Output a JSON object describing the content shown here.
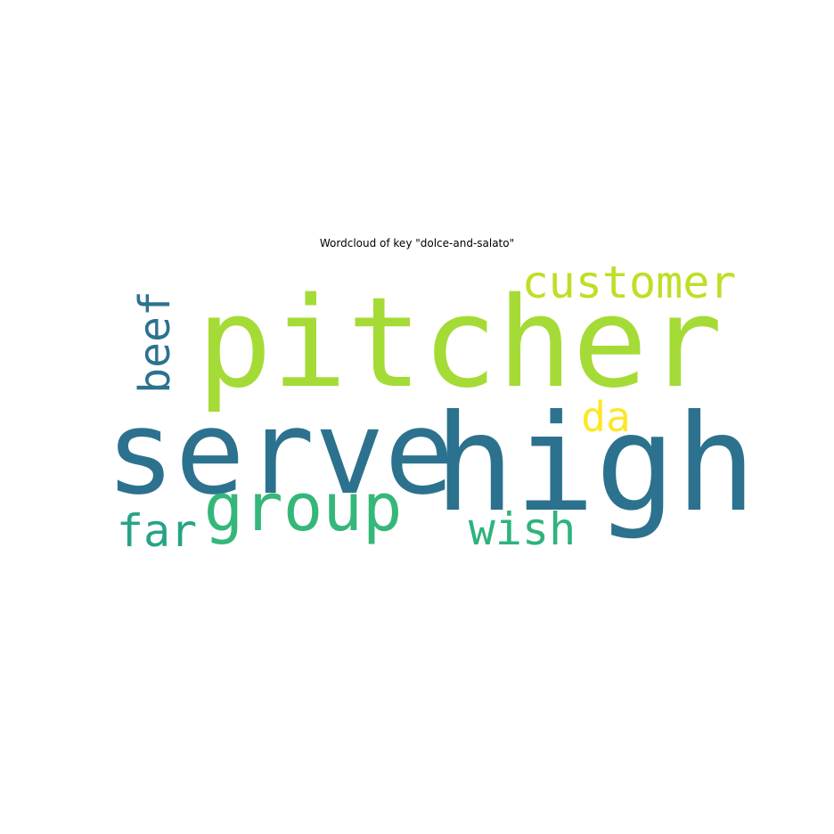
{
  "figure": {
    "title": "Wordcloud of key \"dolce-and-salato\""
  },
  "words": [
    {
      "id": "pitcher",
      "text": "pitcher",
      "color": "#a5db36"
    },
    {
      "id": "serve",
      "text": "serve",
      "color": "#2c728e"
    },
    {
      "id": "high",
      "text": "high",
      "color": "#2c728e"
    },
    {
      "id": "group",
      "text": "group",
      "color": "#35b779"
    },
    {
      "id": "customer",
      "text": "customer",
      "color": "#bddf26"
    },
    {
      "id": "beef",
      "text": "beef",
      "color": "#2c728e"
    },
    {
      "id": "da",
      "text": "da",
      "color": "#fde725"
    },
    {
      "id": "far",
      "text": "far",
      "color": "#26a387"
    },
    {
      "id": "wish",
      "text": "wish",
      "color": "#2eb37c"
    }
  ]
}
